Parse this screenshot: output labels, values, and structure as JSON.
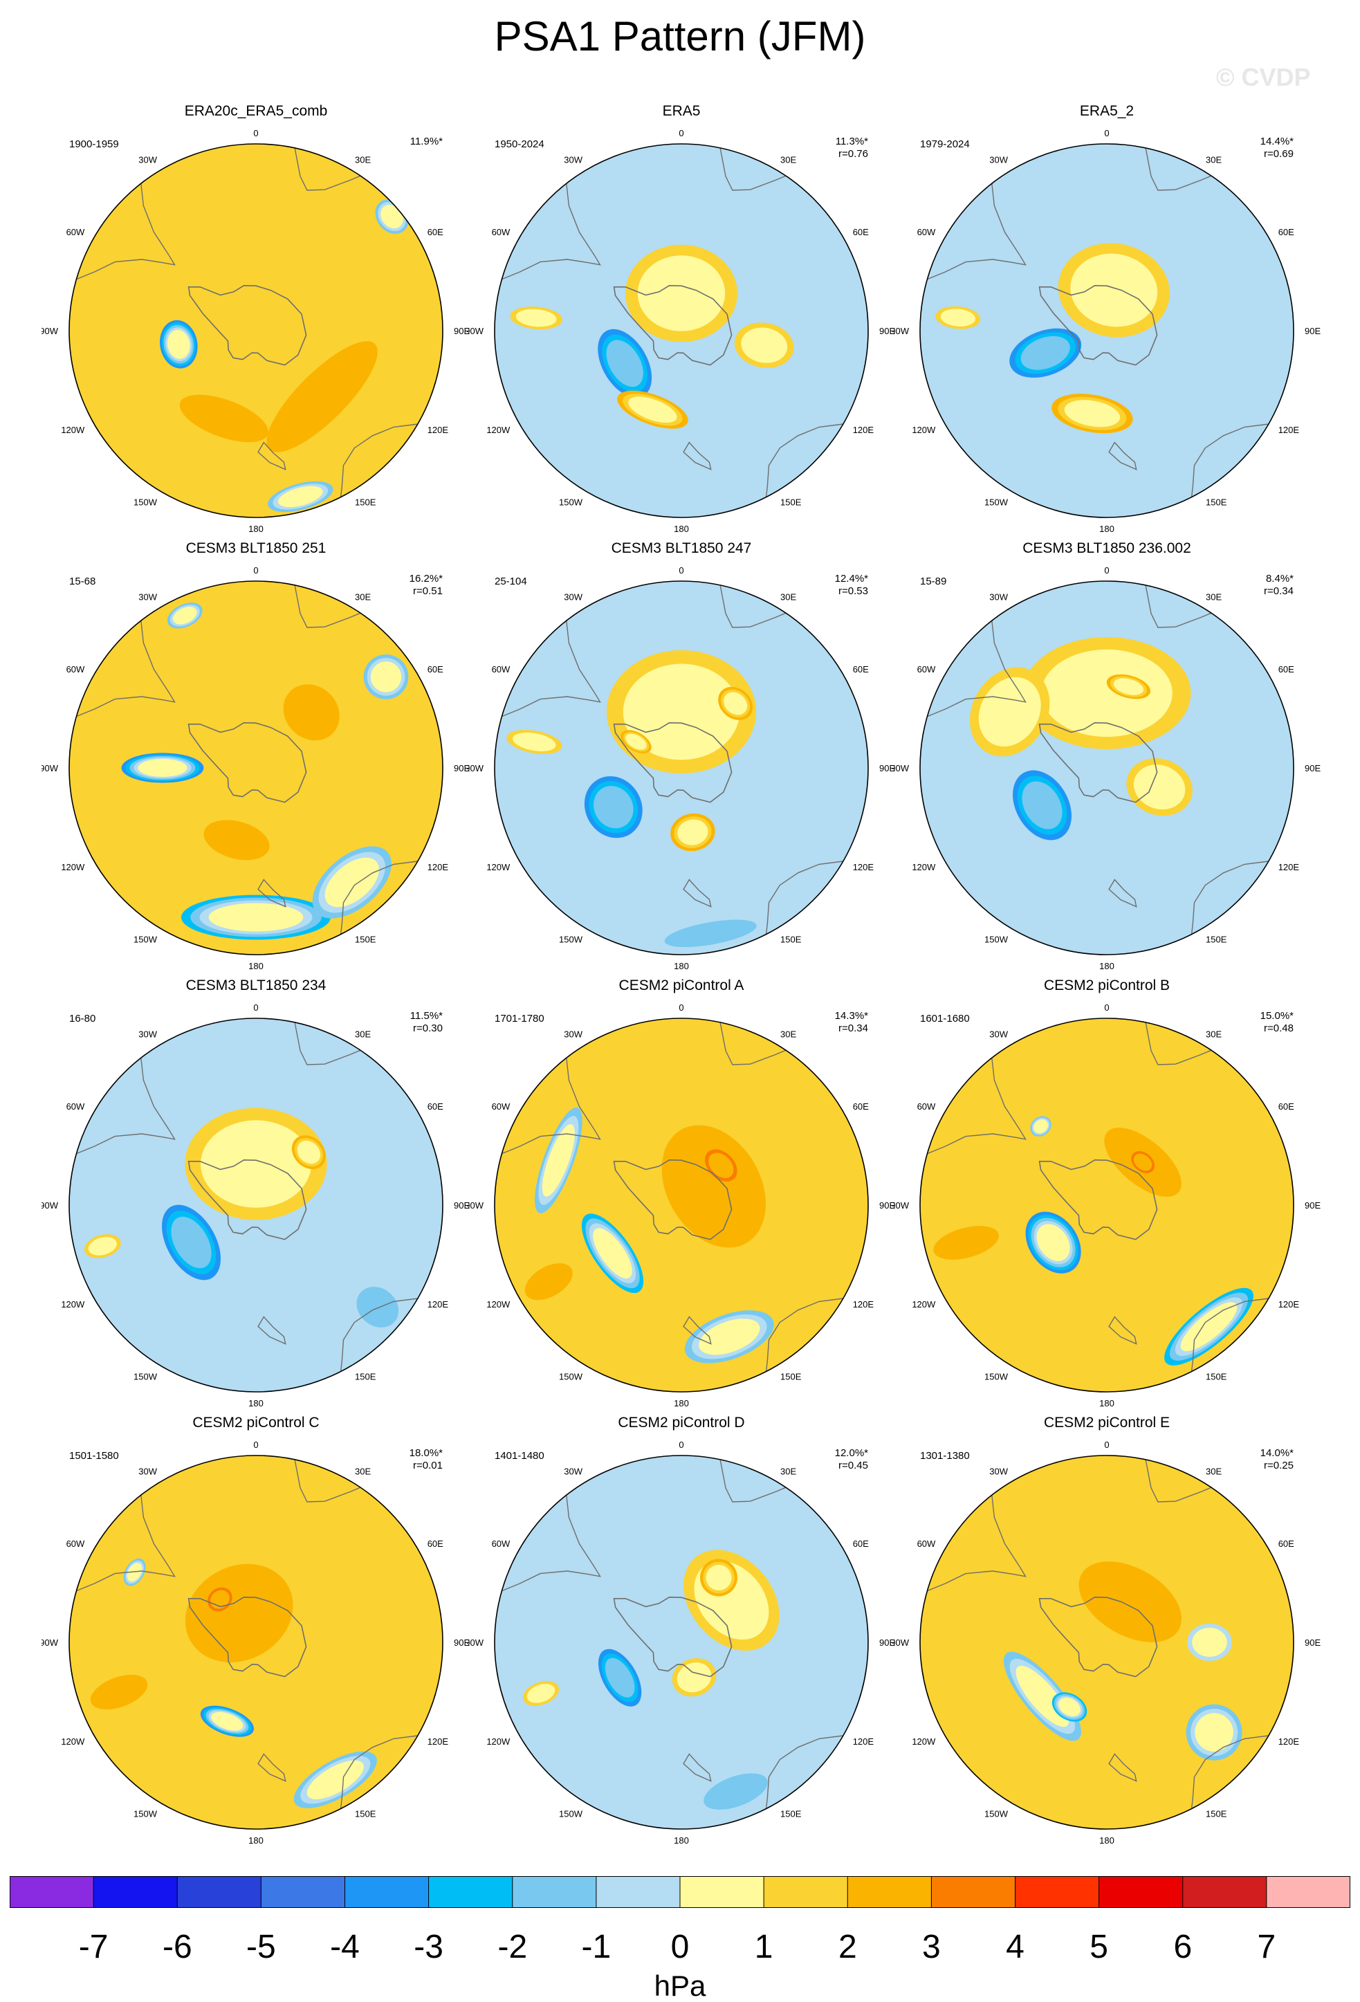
{
  "title": "PSA1 Pattern (JFM)",
  "watermark": "© CVDP",
  "unit": "hPa",
  "colors": {
    "levels": [
      "#8a2be2",
      "#1414f0",
      "#2841d8",
      "#3c78e6",
      "#1e96f5",
      "#00bef5",
      "#78c8f0",
      "#b4dcf2",
      "#fffa9b",
      "#fad232",
      "#fab400",
      "#fa7d00",
      "#ff3200",
      "#eb0000",
      "#d21e1e",
      "#ffb4b4"
    ],
    "coast": "#6e6e6e",
    "ticks": [
      "-7",
      "-6",
      "-5",
      "-4",
      "-3",
      "-2",
      "-1",
      "0",
      "1",
      "2",
      "3",
      "4",
      "5",
      "6",
      "7"
    ]
  },
  "lon_labels": [
    "0",
    "30E",
    "60E",
    "90E",
    "120E",
    "150E",
    "180",
    "150W",
    "120W",
    "90W",
    "60W",
    "30W"
  ],
  "chart_data": {
    "type": "heatmap",
    "projection": "south-polar stereographic",
    "variable": "sea level pressure anomaly",
    "colorbar_ticks": [
      -7,
      -6,
      -5,
      -4,
      -3,
      -2,
      -1,
      0,
      1,
      2,
      3,
      4,
      5,
      6,
      7
    ],
    "panels": [
      {
        "title": "ERA20c_ERA5_comb",
        "period": "1900-1959",
        "pct": "11.9%*",
        "r": "",
        "background": 1,
        "features": [
          {
            "lon": 260,
            "r": 0.42,
            "ax": 0.13,
            "ay": 0.1,
            "v": -3.5
          },
          {
            "lon": 135,
            "r": 0.5,
            "ax": 0.4,
            "ay": 0.13,
            "v": 2.2,
            "band": true
          },
          {
            "lon": 200,
            "r": 0.5,
            "ax": 0.25,
            "ay": 0.1,
            "v": 2.5
          },
          {
            "lon": 280,
            "r": 0.75,
            "ax": 0.09,
            "ay": 0.2,
            "v": 1.8
          },
          {
            "lon": 50,
            "r": 0.95,
            "ax": 0.1,
            "ay": 0.08,
            "v": -1.5
          },
          {
            "lon": 165,
            "r": 0.92,
            "ax": 0.18,
            "ay": 0.07,
            "v": -1.2
          }
        ]
      },
      {
        "title": "ERA5",
        "period": "1950-2024",
        "pct": "11.3%*",
        "r": "r=0.76",
        "background": -1,
        "features": [
          {
            "lon": 0,
            "r": 0.2,
            "ax": 0.3,
            "ay": 0.26,
            "v": 1.5
          },
          {
            "lon": 240,
            "r": 0.35,
            "ax": 0.2,
            "ay": 0.12,
            "v": -3.6
          },
          {
            "lon": 200,
            "r": 0.45,
            "ax": 0.2,
            "ay": 0.08,
            "v": 2.3
          },
          {
            "lon": 275,
            "r": 0.78,
            "ax": 0.06,
            "ay": 0.14,
            "v": 1.6
          },
          {
            "lon": 100,
            "r": 0.45,
            "ax": 0.12,
            "ay": 0.16,
            "v": 1.2
          }
        ]
      },
      {
        "title": "ERA5_2",
        "period": "1979-2024",
        "pct": "14.4%*",
        "r": "r=0.69",
        "background": -1,
        "features": [
          {
            "lon": 10,
            "r": 0.22,
            "ax": 0.3,
            "ay": 0.25,
            "v": 1.3
          },
          {
            "lon": 250,
            "r": 0.35,
            "ax": 0.12,
            "ay": 0.2,
            "v": -3.6
          },
          {
            "lon": 190,
            "r": 0.45,
            "ax": 0.22,
            "ay": 0.1,
            "v": 2.4
          },
          {
            "lon": 275,
            "r": 0.8,
            "ax": 0.06,
            "ay": 0.12,
            "v": 1.6
          }
        ]
      },
      {
        "title": "CESM3 BLT1850 251",
        "period": "15-68",
        "pct": "16.2%*",
        "r": "r=0.51",
        "background": 1,
        "features": [
          {
            "lon": 45,
            "r": 0.42,
            "ax": 0.16,
            "ay": 0.14,
            "v": 2.8
          },
          {
            "lon": 270,
            "r": 0.5,
            "ax": 0.08,
            "ay": 0.22,
            "v": -3.5
          },
          {
            "lon": 180,
            "r": 0.8,
            "ax": 0.4,
            "ay": 0.12,
            "v": -2.2
          },
          {
            "lon": 140,
            "r": 0.8,
            "ax": 0.25,
            "ay": 0.14,
            "v": -2.0
          },
          {
            "lon": 195,
            "r": 0.4,
            "ax": 0.18,
            "ay": 0.1,
            "v": 2.2
          },
          {
            "lon": 285,
            "r": 0.82,
            "ax": 0.06,
            "ay": 0.18,
            "v": 1.7
          },
          {
            "lon": 335,
            "r": 0.9,
            "ax": 0.1,
            "ay": 0.06,
            "v": -1.2
          },
          {
            "lon": 55,
            "r": 0.85,
            "ax": 0.12,
            "ay": 0.12,
            "v": -1.5
          }
        ]
      },
      {
        "title": "CESM3 BLT1850 247",
        "period": "25-104",
        "pct": "12.4%*",
        "r": "r=0.53",
        "background": -1,
        "features": [
          {
            "lon": 0,
            "r": 0.3,
            "ax": 0.4,
            "ay": 0.33,
            "v": 1.6
          },
          {
            "lon": 240,
            "r": 0.42,
            "ax": 0.17,
            "ay": 0.15,
            "v": -4.0
          },
          {
            "lon": 170,
            "r": 0.35,
            "ax": 0.12,
            "ay": 0.1,
            "v": 2.7
          },
          {
            "lon": 40,
            "r": 0.45,
            "ax": 0.1,
            "ay": 0.08,
            "v": 2.1
          },
          {
            "lon": 300,
            "r": 0.28,
            "ax": 0.05,
            "ay": 0.09,
            "v": 2.0
          },
          {
            "lon": 280,
            "r": 0.8,
            "ax": 0.06,
            "ay": 0.15,
            "v": 1.6
          },
          {
            "lon": 170,
            "r": 0.9,
            "ax": 0.25,
            "ay": 0.06,
            "v": -1.8
          }
        ]
      },
      {
        "title": "CESM3 BLT1850 236.002",
        "period": "15-89",
        "pct": "8.4%*",
        "r": "r=0.34",
        "background": -1,
        "features": [
          {
            "lon": 0,
            "r": 0.4,
            "ax": 0.45,
            "ay": 0.3,
            "v": 1.3
          },
          {
            "lon": 15,
            "r": 0.45,
            "ax": 0.12,
            "ay": 0.06,
            "v": 2.1
          },
          {
            "lon": 240,
            "r": 0.4,
            "ax": 0.2,
            "ay": 0.14,
            "v": -3.6
          },
          {
            "lon": 110,
            "r": 0.3,
            "ax": 0.15,
            "ay": 0.18,
            "v": 1.3
          },
          {
            "lon": 300,
            "r": 0.6,
            "ax": 0.25,
            "ay": 0.2,
            "v": 1.2
          }
        ]
      },
      {
        "title": "CESM3 BLT1850 234",
        "period": "16-80",
        "pct": "11.5%*",
        "r": "r=0.30",
        "background": -1,
        "features": [
          {
            "lon": 0,
            "r": 0.22,
            "ax": 0.38,
            "ay": 0.3,
            "v": 1.4
          },
          {
            "lon": 45,
            "r": 0.4,
            "ax": 0.1,
            "ay": 0.08,
            "v": 2.1
          },
          {
            "lon": 240,
            "r": 0.4,
            "ax": 0.22,
            "ay": 0.13,
            "v": -3.5
          },
          {
            "lon": 255,
            "r": 0.85,
            "ax": 0.06,
            "ay": 0.1,
            "v": 1.6
          },
          {
            "lon": 130,
            "r": 0.85,
            "ax": 0.1,
            "ay": 0.12,
            "v": -1.5
          }
        ]
      },
      {
        "title": "CESM2 piControl A",
        "period": "1701-1780",
        "pct": "14.3%*",
        "r": "r=0.34",
        "background": 1,
        "features": [
          {
            "lon": 60,
            "r": 0.2,
            "ax": 0.35,
            "ay": 0.25,
            "v": 2.4
          },
          {
            "lon": 45,
            "r": 0.3,
            "ax": 0.1,
            "ay": 0.07,
            "v": 3.2
          },
          {
            "lon": 235,
            "r": 0.45,
            "ax": 0.25,
            "ay": 0.1,
            "v": -2.2
          },
          {
            "lon": 160,
            "r": 0.75,
            "ax": 0.25,
            "ay": 0.12,
            "v": -1.9
          },
          {
            "lon": 290,
            "r": 0.7,
            "ax": 0.3,
            "ay": 0.08,
            "v": -1.3
          },
          {
            "lon": 240,
            "r": 0.82,
            "ax": 0.08,
            "ay": 0.14,
            "v": 2.0
          }
        ]
      },
      {
        "title": "CESM2 piControl B",
        "period": "1601-1680",
        "pct": "15.0%*",
        "r": "r=0.48",
        "background": 1,
        "features": [
          {
            "lon": 40,
            "r": 0.3,
            "ax": 0.25,
            "ay": 0.12,
            "v": 2.4
          },
          {
            "lon": 40,
            "r": 0.3,
            "ax": 0.07,
            "ay": 0.05,
            "v": 3.1
          },
          {
            "lon": 235,
            "r": 0.35,
            "ax": 0.18,
            "ay": 0.13,
            "v": -3.4
          },
          {
            "lon": 140,
            "r": 0.85,
            "ax": 0.3,
            "ay": 0.1,
            "v": -2.2
          },
          {
            "lon": 255,
            "r": 0.78,
            "ax": 0.08,
            "ay": 0.18,
            "v": 2.1
          },
          {
            "lon": 320,
            "r": 0.55,
            "ax": 0.06,
            "ay": 0.05,
            "v": -1.2
          }
        ]
      },
      {
        "title": "CESM2 piControl C",
        "period": "1501-1580",
        "pct": "18.0%*",
        "r": "r=0.01",
        "background": 1,
        "features": [
          {
            "lon": 330,
            "r": 0.18,
            "ax": 0.3,
            "ay": 0.25,
            "v": 2.4
          },
          {
            "lon": 320,
            "r": 0.3,
            "ax": 0.07,
            "ay": 0.06,
            "v": 3.2
          },
          {
            "lon": 200,
            "r": 0.45,
            "ax": 0.15,
            "ay": 0.07,
            "v": -3.3
          },
          {
            "lon": 150,
            "r": 0.85,
            "ax": 0.25,
            "ay": 0.1,
            "v": -1.5
          },
          {
            "lon": 250,
            "r": 0.78,
            "ax": 0.08,
            "ay": 0.16,
            "v": 2.1
          },
          {
            "lon": 300,
            "r": 0.75,
            "ax": 0.08,
            "ay": 0.05,
            "v": -1.2
          }
        ]
      },
      {
        "title": "CESM2 piControl D",
        "period": "1401-1480",
        "pct": "12.0%*",
        "r": "r=0.45",
        "background": -1,
        "features": [
          {
            "lon": 50,
            "r": 0.35,
            "ax": 0.3,
            "ay": 0.22,
            "v": 1.4
          },
          {
            "lon": 30,
            "r": 0.4,
            "ax": 0.1,
            "ay": 0.1,
            "v": 2.6
          },
          {
            "lon": 240,
            "r": 0.38,
            "ax": 0.17,
            "ay": 0.09,
            "v": -3.5
          },
          {
            "lon": 160,
            "r": 0.2,
            "ax": 0.12,
            "ay": 0.1,
            "v": 1.6
          },
          {
            "lon": 250,
            "r": 0.8,
            "ax": 0.06,
            "ay": 0.1,
            "v": 1.7
          },
          {
            "lon": 160,
            "r": 0.85,
            "ax": 0.18,
            "ay": 0.08,
            "v": -1.8
          }
        ]
      },
      {
        "title": "CESM2 piControl E",
        "period": "1301-1380",
        "pct": "14.0%*",
        "r": "r=0.25",
        "background": 1,
        "features": [
          {
            "lon": 30,
            "r": 0.25,
            "ax": 0.3,
            "ay": 0.18,
            "v": 2.2
          },
          {
            "lon": 20,
            "r": 0.38,
            "ax": 0.06,
            "ay": 0.05,
            "v": 2.9
          },
          {
            "lon": 230,
            "r": 0.45,
            "ax": 0.3,
            "ay": 0.1,
            "v": -1.3
          },
          {
            "lon": 210,
            "r": 0.4,
            "ax": 0.1,
            "ay": 0.07,
            "v": -2.2
          },
          {
            "lon": 250,
            "r": 0.8,
            "ax": 0.06,
            "ay": 0.12,
            "v": 1.7
          },
          {
            "lon": 130,
            "r": 0.75,
            "ax": 0.15,
            "ay": 0.15,
            "v": -1.5
          },
          {
            "lon": 90,
            "r": 0.55,
            "ax": 0.1,
            "ay": 0.12,
            "v": -1.0
          }
        ]
      }
    ]
  }
}
